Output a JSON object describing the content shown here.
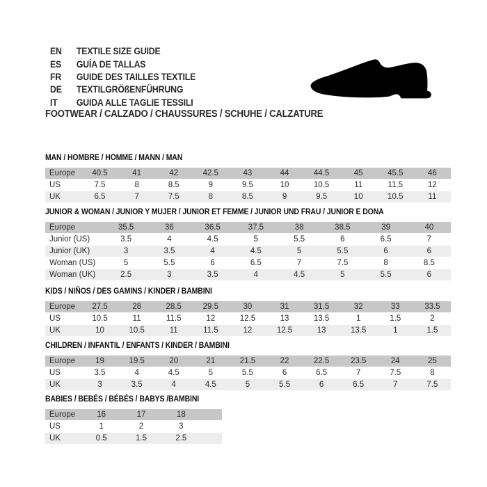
{
  "colors": {
    "table_header_bg": "#c7c7c7",
    "table_alt_row_bg": "#ededed",
    "table_row_bg": "#ffffff",
    "text": "#2a2a2a",
    "shoe": "#000000"
  },
  "language_guide": [
    {
      "code": "EN",
      "label": "TEXTILE SIZE GUIDE"
    },
    {
      "code": "ES",
      "label": "GUÍA DE TALLAS"
    },
    {
      "code": "FR",
      "label": "GUIDE DES TAILLES TEXTILE"
    },
    {
      "code": "DE",
      "label": "TEXTILGRÖßENFÜHRUNG"
    },
    {
      "code": "IT",
      "label": "GUIDA ALLE TAGLIE TESSILI"
    }
  ],
  "category_line": "FOOTWEAR / CALZADO / CHAUSSURES / SCHUHE / CALZATURE",
  "shoe_icon": "dress-shoe-silhouette",
  "sections": [
    {
      "title": "MAN / HOMBRE / HOMME / MANN / MAN",
      "rows": [
        {
          "style": "header",
          "label": "Europe",
          "values": [
            "40.5",
            "41",
            "42",
            "42.5",
            "43",
            "44",
            "44.5",
            "45",
            "45.5",
            "46"
          ]
        },
        {
          "style": "white",
          "label": "US",
          "values": [
            "7.5",
            "8",
            "8.5",
            "9",
            "9.5",
            "10",
            "10.5",
            "11",
            "11.5",
            "12"
          ]
        },
        {
          "style": "alt",
          "label": "UK",
          "values": [
            "6.5",
            "7",
            "7.5",
            "8",
            "8.5",
            "9",
            "9.5",
            "10",
            "10.5",
            "11"
          ]
        }
      ]
    },
    {
      "title": "JUNIOR & WOMAN / JUNIOR Y MUJER / JUNIOR ET FEMME / JUNIOR UND FRAU / JUNIOR E DONA",
      "rows": [
        {
          "style": "header",
          "label": "Europe",
          "values": [
            "35.5",
            "36",
            "36.5",
            "37.5",
            "38",
            "38.5",
            "39",
            "40"
          ]
        },
        {
          "style": "white",
          "label": "Junior (US)",
          "values": [
            "3.5",
            "4",
            "4.5",
            "5",
            "5.5",
            "6",
            "6.5",
            "7"
          ]
        },
        {
          "style": "alt",
          "label": "Junior (UK)",
          "values": [
            "3",
            "3.5",
            "4",
            "4.5",
            "5",
            "5.5",
            "6",
            "6"
          ]
        },
        {
          "style": "white",
          "label": "Woman (US)",
          "values": [
            "5",
            "5.5",
            "6",
            "6.5",
            "7",
            "7.5",
            "8",
            "8.5"
          ]
        },
        {
          "style": "alt",
          "label": "Woman (UK)",
          "values": [
            "2.5",
            "3",
            "3.5",
            "4",
            "4.5",
            "5",
            "5.5",
            "6"
          ]
        }
      ]
    },
    {
      "title": "KIDS / NIÑOS / DES GAMINS / KINDER / BAMBINI",
      "rows": [
        {
          "style": "header",
          "label": "Europe",
          "values": [
            "27.5",
            "28",
            "28.5",
            "29.5",
            "30",
            "31",
            "31.5",
            "32",
            "33",
            "33.5"
          ]
        },
        {
          "style": "white",
          "label": "US",
          "values": [
            "10.5",
            "11",
            "11.5",
            "12",
            "12.5",
            "13",
            "13.5",
            "1",
            "1.5",
            "2"
          ]
        },
        {
          "style": "alt",
          "label": "UK",
          "values": [
            "10",
            "10.5",
            "11",
            "11.5",
            "12",
            "12.5",
            "13",
            "13.5",
            "1",
            "1.5"
          ]
        }
      ]
    },
    {
      "title": "CHILDREN / INFANTIL / ENFANTS / KINDER / BAMBINI",
      "rows": [
        {
          "style": "header",
          "label": "Europe",
          "values": [
            "19",
            "19.5",
            "20",
            "21",
            "21.5",
            "22",
            "22.5",
            "23.5",
            "24",
            "25"
          ]
        },
        {
          "style": "white",
          "label": "US",
          "values": [
            "3.5",
            "4",
            "4.5",
            "5",
            "5.5",
            "6",
            "6.5",
            "7",
            "7.5",
            "8"
          ]
        },
        {
          "style": "alt",
          "label": "UK",
          "values": [
            "3",
            "3.5",
            "4",
            "4.5",
            "5",
            "5.5",
            "6",
            "6.5",
            "7",
            "7.5"
          ]
        }
      ]
    },
    {
      "title": "BABIES  / BEBÉS / BÉBÉS / BABYS /BAMBINI",
      "rows": [
        {
          "style": "header",
          "label": "Europe",
          "values": [
            "16",
            "17",
            "18"
          ]
        },
        {
          "style": "white",
          "label": "US",
          "values": [
            "1",
            "2",
            "3"
          ]
        },
        {
          "style": "alt",
          "label": "UK",
          "values": [
            "0.5",
            "1.5",
            "2.5"
          ]
        }
      ]
    }
  ]
}
